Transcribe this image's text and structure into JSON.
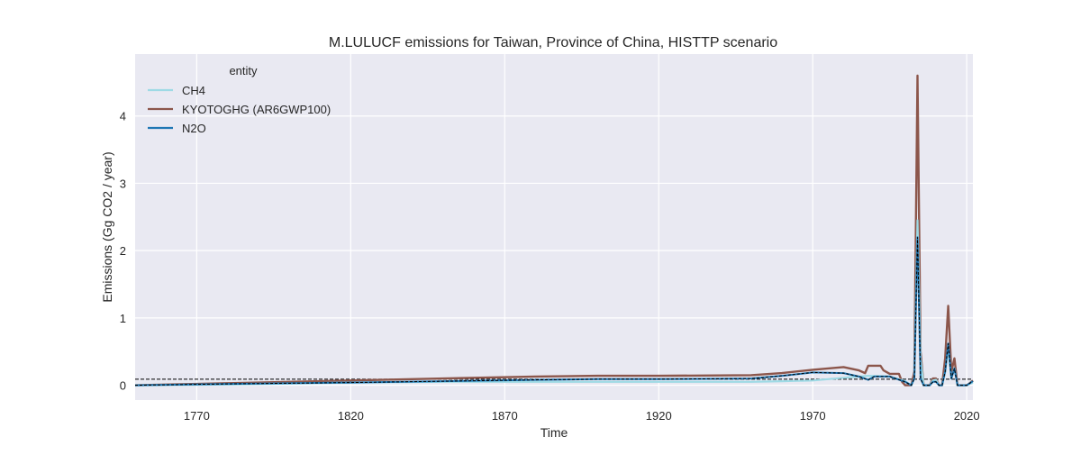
{
  "chart_data": {
    "type": "line",
    "title": "M.LULUCF emissions for Taiwan, Province of China, HISTTP scenario",
    "xlabel": "Time",
    "ylabel": "Emissions (Gg CO2 / year)",
    "xlim": [
      1750,
      2022
    ],
    "ylim": [
      -0.22,
      4.92
    ],
    "x_ticks": [
      1770,
      1820,
      1870,
      1920,
      1970,
      2020
    ],
    "y_ticks": [
      0,
      1,
      2,
      3,
      4
    ],
    "grid": true,
    "background": "#e9e9f2",
    "legend": {
      "title": "entity",
      "placement": "top-left",
      "entries": [
        "CH4",
        "KYOTOGHG (AR6GWP100)",
        "N2O"
      ]
    },
    "reference_line": {
      "y": 0.09,
      "style": "dashed",
      "color": "#000000"
    },
    "series": [
      {
        "name": "CH4",
        "color": "#9edae5",
        "x": [
          1750,
          1780,
          1820,
          1850,
          1880,
          1900,
          1920,
          1950,
          1960,
          1970,
          1980,
          1988,
          1995,
          2000,
          2002,
          2003,
          2004,
          2005,
          2006,
          2007,
          2008,
          2009,
          2010,
          2011,
          2012,
          2013,
          2014,
          2015,
          2016,
          2017,
          2018,
          2019,
          2020,
          2021,
          2022
        ],
        "y": [
          0.0,
          0.01,
          0.04,
          0.05,
          0.05,
          0.05,
          0.05,
          0.05,
          0.06,
          0.07,
          0.11,
          0.14,
          0.13,
          0.06,
          0.0,
          0.1,
          2.45,
          0.4,
          0.0,
          0.0,
          0.0,
          0.07,
          0.08,
          0.0,
          0.0,
          0.2,
          0.55,
          0.1,
          0.25,
          0.0,
          0.0,
          0.0,
          0.0,
          0.02,
          0.04
        ]
      },
      {
        "name": "KYOTOGHG (AR6GWP100)",
        "color": "#8c564b",
        "x": [
          1750,
          1780,
          1820,
          1850,
          1880,
          1900,
          1920,
          1950,
          1960,
          1970,
          1980,
          1985,
          1987,
          1988,
          1992,
          1993,
          1995,
          1998,
          1999,
          2000,
          2001,
          2002,
          2003,
          2004,
          2005,
          2006,
          2007,
          2008,
          2009,
          2010,
          2011,
          2012,
          2013,
          2014,
          2015,
          2016,
          2017,
          2018,
          2019,
          2020,
          2021,
          2022
        ],
        "y": [
          0.0,
          0.03,
          0.07,
          0.1,
          0.13,
          0.14,
          0.14,
          0.15,
          0.18,
          0.23,
          0.27,
          0.22,
          0.18,
          0.29,
          0.29,
          0.22,
          0.17,
          0.17,
          0.05,
          0.0,
          0.0,
          0.0,
          0.2,
          4.6,
          0.5,
          0.0,
          0.0,
          0.0,
          0.1,
          0.1,
          0.0,
          0.0,
          0.4,
          1.18,
          0.2,
          0.4,
          0.0,
          0.0,
          0.0,
          0.0,
          0.03,
          0.07
        ]
      },
      {
        "name": "N2O",
        "color": "#1f77b4",
        "x": [
          1750,
          1780,
          1820,
          1850,
          1880,
          1900,
          1920,
          1950,
          1960,
          1970,
          1980,
          1985,
          1988,
          1990,
          1995,
          2000,
          2002,
          2003,
          2004,
          2005,
          2006,
          2007,
          2008,
          2009,
          2010,
          2011,
          2012,
          2013,
          2014,
          2015,
          2016,
          2017,
          2018,
          2019,
          2020,
          2021,
          2022
        ],
        "y": [
          0.0,
          0.02,
          0.04,
          0.06,
          0.08,
          0.09,
          0.09,
          0.1,
          0.14,
          0.19,
          0.18,
          0.13,
          0.08,
          0.13,
          0.13,
          0.05,
          0.0,
          0.1,
          2.2,
          0.1,
          0.0,
          0.0,
          0.0,
          0.05,
          0.05,
          0.0,
          0.0,
          0.2,
          0.62,
          0.1,
          0.25,
          0.0,
          0.0,
          0.0,
          0.0,
          0.03,
          0.06
        ]
      }
    ]
  }
}
